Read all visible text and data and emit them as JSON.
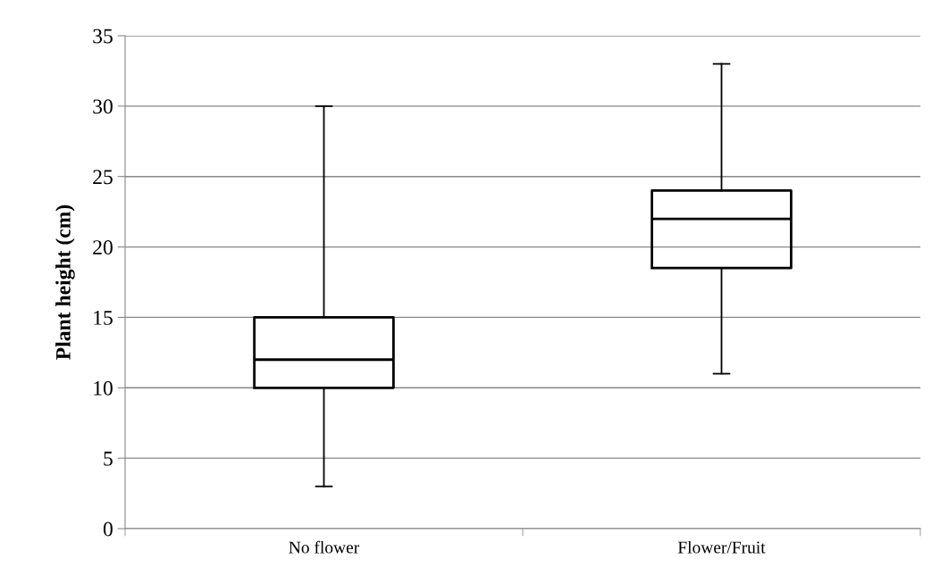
{
  "chart_data": {
    "type": "box",
    "ylabel": "Plant height (cm)",
    "categories": [
      "No flower",
      "Flower/Fruit"
    ],
    "boxes": [
      {
        "low": 3,
        "q1": 10,
        "median": 12,
        "q3": 15,
        "high": 30
      },
      {
        "low": 11,
        "q1": 18.5,
        "median": 22,
        "q3": 24,
        "high": 33
      }
    ],
    "ylim": [
      0,
      35
    ],
    "yticks": [
      0,
      5,
      10,
      15,
      20,
      25,
      30,
      35
    ],
    "grid": "y",
    "color": "#000000"
  }
}
